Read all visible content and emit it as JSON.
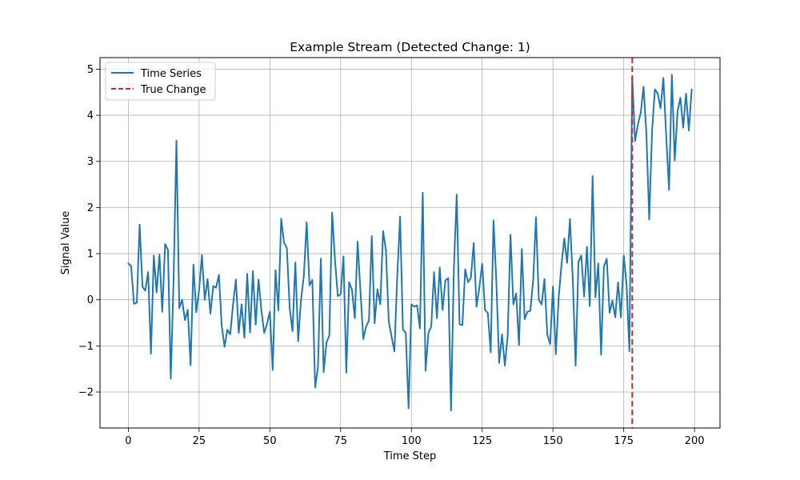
{
  "chart_data": {
    "type": "line",
    "title": "Example Stream (Detected Change: 1)",
    "xlabel": "Time Step",
    "ylabel": "Signal Value",
    "xlim": [
      -10,
      209
    ],
    "ylim": [
      -2.78,
      5.25
    ],
    "xticks": [
      0,
      25,
      50,
      75,
      100,
      125,
      150,
      175,
      200
    ],
    "yticks": [
      -2,
      -1,
      0,
      1,
      2,
      3,
      4,
      5
    ],
    "grid": true,
    "legend_position": "top-left",
    "series": [
      {
        "name": "Time Series",
        "color": "#1f77b4",
        "x_start": 0,
        "x_step": 1,
        "values": [
          0.79,
          0.73,
          -0.09,
          -0.06,
          1.63,
          0.28,
          0.2,
          0.6,
          -1.17,
          0.96,
          0.16,
          0.98,
          -0.26,
          1.21,
          1.08,
          -1.71,
          0.45,
          3.45,
          -0.18,
          0.0,
          -0.44,
          -0.22,
          -1.42,
          0.76,
          -0.27,
          0.21,
          0.97,
          0.0,
          0.45,
          -0.3,
          0.3,
          0.26,
          0.54,
          -0.57,
          -1.02,
          -0.65,
          -0.75,
          -0.1,
          0.44,
          -0.72,
          -0.1,
          -0.82,
          0.56,
          -0.71,
          0.62,
          -0.54,
          0.44,
          -0.22,
          -0.72,
          -0.52,
          -0.26,
          -1.52,
          0.64,
          -0.23,
          1.76,
          1.24,
          1.12,
          -0.18,
          -0.68,
          0.81,
          -0.9,
          0.0,
          0.52,
          1.68,
          0.31,
          0.43,
          -1.9,
          -1.45,
          0.89,
          -1.57,
          -0.92,
          -0.78,
          1.89,
          0.87,
          0.08,
          0.12,
          0.94,
          -1.58,
          0.38,
          0.22,
          -0.4,
          1.26,
          0.18,
          -0.85,
          -0.58,
          -0.45,
          1.38,
          -0.51,
          0.23,
          -0.1,
          1.49,
          1.07,
          -0.47,
          -0.8,
          -1.12,
          0.52,
          1.8,
          -0.64,
          -0.72,
          -2.35,
          -0.1,
          -0.15,
          -0.12,
          -0.62,
          2.32,
          -1.54,
          -0.72,
          -0.58,
          0.6,
          -0.4,
          0.7,
          -0.22,
          0.42,
          0.47,
          -2.4,
          0.68,
          2.28,
          -0.53,
          -0.55,
          0.66,
          0.38,
          0.47,
          1.23,
          -0.15,
          0.27,
          0.78,
          -0.22,
          -0.29,
          -1.14,
          1.72,
          0.39,
          -1.37,
          -0.75,
          -1.43,
          -0.78,
          1.41,
          -0.1,
          0.14,
          -0.98,
          1.1,
          -0.42,
          -0.26,
          -0.24,
          0.42,
          1.79,
          0.0,
          -0.1,
          0.45,
          -0.76,
          -0.96,
          0.29,
          -1.18,
          0.04,
          0.75,
          1.33,
          0.8,
          1.75,
          0.45,
          -1.43,
          0.82,
          0.96,
          0.07,
          1.15,
          -0.14,
          2.68,
          0.05,
          0.79,
          -1.19,
          0.72,
          0.89,
          -0.28,
          -0.02,
          -0.38,
          0.38,
          -0.38,
          0.96,
          0.32,
          -1.12,
          4.83,
          3.44,
          3.8,
          4.05,
          4.62,
          3.6,
          1.74,
          3.65,
          4.56,
          4.47,
          4.15,
          4.81,
          3.55,
          2.38,
          4.88,
          3.02,
          4.08,
          4.38,
          3.73,
          4.47,
          3.67,
          4.56
        ]
      }
    ],
    "vlines": [
      {
        "name": "True Change",
        "x": 178,
        "color": "#d62728",
        "style": "dashed"
      }
    ]
  }
}
